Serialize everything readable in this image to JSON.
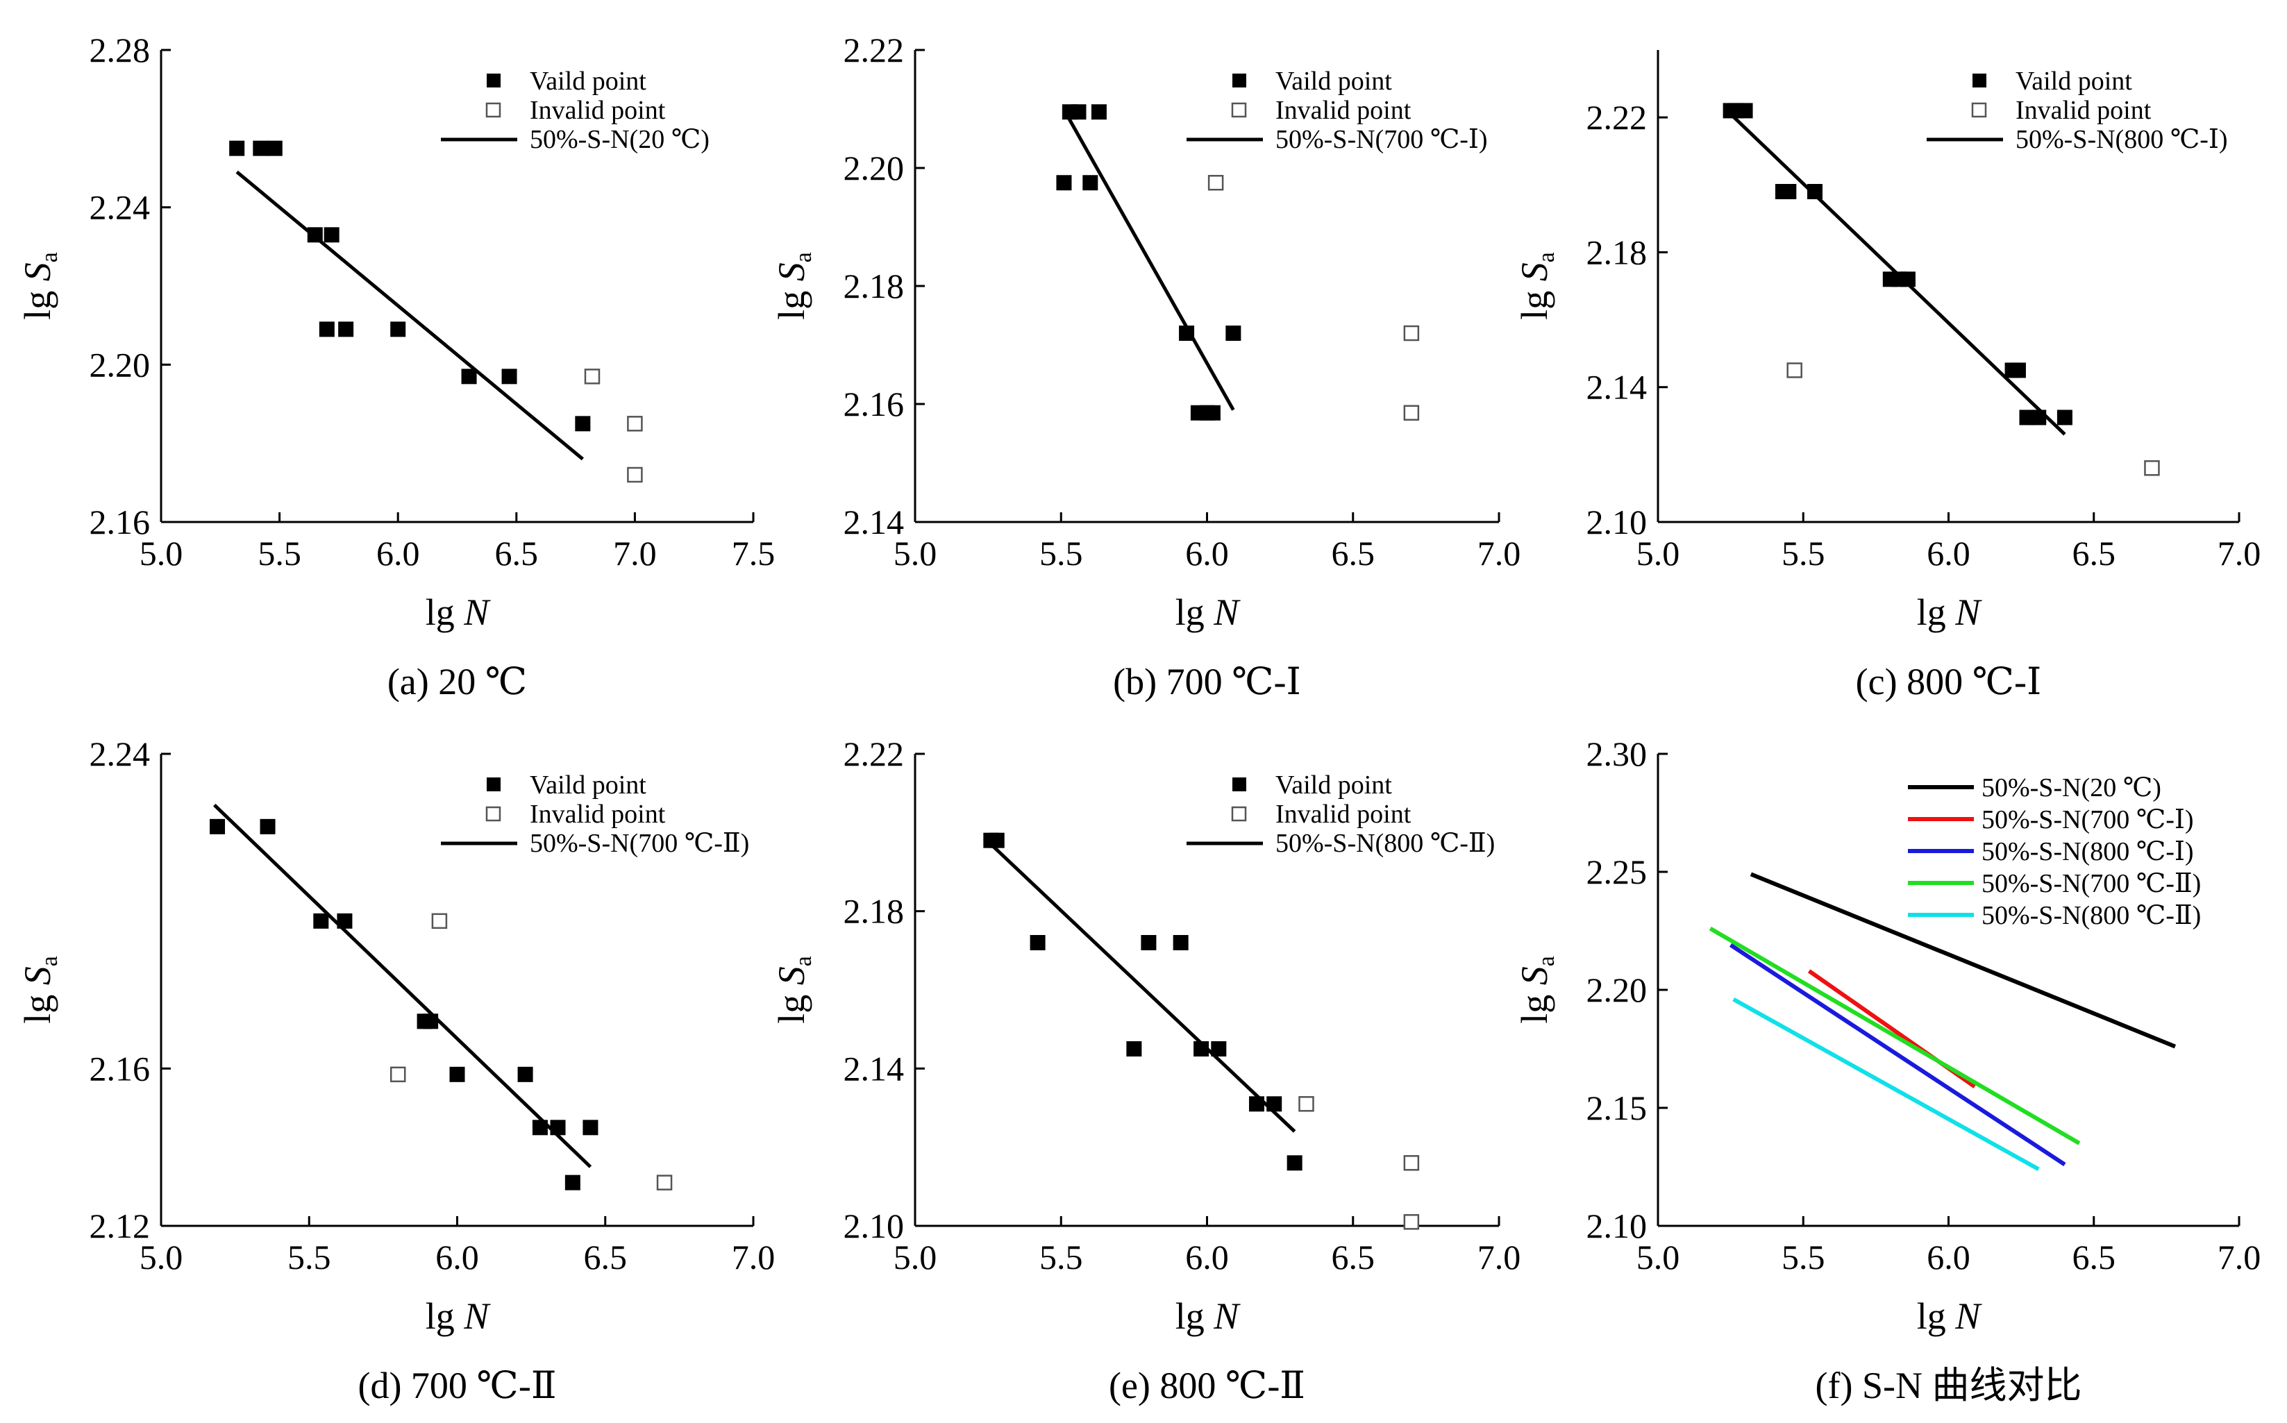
{
  "chart_data": [
    {
      "type": "scatter",
      "caption": "(a) 20 ℃",
      "xlabel": "lg N",
      "ylabel": "lg Sa",
      "xlim": [
        5.0,
        7.5
      ],
      "ylim": [
        2.16,
        2.28
      ],
      "xticks": [
        "5.0",
        "5.5",
        "6.0",
        "6.5",
        "7.0",
        "7.5"
      ],
      "yticks": [
        "2.16",
        "2.20",
        "2.24",
        "2.28"
      ],
      "legend": [
        "Vaild point",
        "Invalid point",
        "50%-S-N(20 ℃)"
      ],
      "legend_position": "top-right",
      "valid": [
        [
          5.32,
          2.255
        ],
        [
          5.42,
          2.255
        ],
        [
          5.48,
          2.255
        ],
        [
          5.65,
          2.233
        ],
        [
          5.72,
          2.233
        ],
        [
          5.7,
          2.209
        ],
        [
          5.78,
          2.209
        ],
        [
          6.0,
          2.209
        ],
        [
          6.3,
          2.197
        ],
        [
          6.47,
          2.197
        ],
        [
          6.78,
          2.185
        ]
      ],
      "invalid": [
        [
          6.82,
          2.197
        ],
        [
          7.0,
          2.185
        ],
        [
          7.0,
          2.172
        ]
      ],
      "fit_line": [
        [
          5.32,
          2.249
        ],
        [
          6.78,
          2.176
        ]
      ]
    },
    {
      "type": "scatter",
      "caption": "(b) 700 ℃-Ⅰ",
      "xlabel": "lg N",
      "ylabel": "lg Sa",
      "xlim": [
        5.0,
        7.0
      ],
      "ylim": [
        2.14,
        2.22
      ],
      "xticks": [
        "5.0",
        "5.5",
        "6.0",
        "6.5",
        "7.0"
      ],
      "yticks": [
        "2.14",
        "2.16",
        "2.18",
        "2.20",
        "2.22"
      ],
      "legend": [
        "Vaild point",
        "Invalid point",
        "50%-S-N(700 ℃-Ⅰ)"
      ],
      "legend_position": "top-right",
      "valid": [
        [
          5.53,
          2.2095
        ],
        [
          5.56,
          2.2095
        ],
        [
          5.63,
          2.2095
        ],
        [
          5.51,
          2.1975
        ],
        [
          5.6,
          2.1975
        ],
        [
          5.93,
          2.172
        ],
        [
          6.09,
          2.172
        ],
        [
          5.97,
          2.1585
        ],
        [
          6.0,
          2.1585
        ],
        [
          6.02,
          2.1585
        ]
      ],
      "invalid": [
        [
          6.03,
          2.1975
        ],
        [
          6.7,
          2.172
        ],
        [
          6.7,
          2.1585
        ]
      ],
      "fit_line": [
        [
          5.52,
          2.209
        ],
        [
          6.09,
          2.159
        ]
      ]
    },
    {
      "type": "scatter",
      "caption": "(c) 800 ℃-Ⅰ",
      "xlabel": "lg N",
      "ylabel": "lg Sa",
      "xlim": [
        5.0,
        7.0
      ],
      "ylim": [
        2.1,
        2.24
      ],
      "xticks": [
        "5.0",
        "5.5",
        "6.0",
        "6.5",
        "7.0"
      ],
      "yticks": [
        "2.10",
        "2.14",
        "2.18",
        "2.22"
      ],
      "legend": [
        "Vaild point",
        "Invalid point",
        "50%-S-N(800 ℃-Ⅰ)"
      ],
      "legend_position": "top-right",
      "valid": [
        [
          5.25,
          2.222
        ],
        [
          5.27,
          2.222
        ],
        [
          5.3,
          2.222
        ],
        [
          5.43,
          2.198
        ],
        [
          5.45,
          2.198
        ],
        [
          5.54,
          2.198
        ],
        [
          5.8,
          2.172
        ],
        [
          5.83,
          2.172
        ],
        [
          5.86,
          2.172
        ],
        [
          6.22,
          2.145
        ],
        [
          6.24,
          2.145
        ],
        [
          6.27,
          2.131
        ],
        [
          6.31,
          2.131
        ],
        [
          6.4,
          2.131
        ]
      ],
      "invalid": [
        [
          5.47,
          2.145
        ],
        [
          6.7,
          2.116
        ]
      ],
      "fit_line": [
        [
          5.25,
          2.221
        ],
        [
          6.4,
          2.126
        ]
      ]
    },
    {
      "type": "scatter",
      "caption": "(d) 700 ℃-Ⅱ",
      "xlabel": "lg N",
      "ylabel": "lg Sa",
      "xlim": [
        5.0,
        7.0
      ],
      "ylim": [
        2.12,
        2.24
      ],
      "xticks": [
        "5.0",
        "5.5",
        "6.0",
        "6.5",
        "7.0"
      ],
      "yticks": [
        "2.12",
        "2.16",
        "2.24"
      ],
      "legend": [
        "Vaild point",
        "Invalid point",
        "50%-S-N(700 ℃-Ⅱ)"
      ],
      "legend_position": "top-right",
      "valid": [
        [
          5.19,
          2.2215
        ],
        [
          5.36,
          2.2215
        ],
        [
          5.54,
          2.1975
        ],
        [
          5.62,
          2.1975
        ],
        [
          5.89,
          2.172
        ],
        [
          5.91,
          2.172
        ],
        [
          6.0,
          2.1585
        ],
        [
          6.23,
          2.1585
        ],
        [
          6.28,
          2.145
        ],
        [
          6.34,
          2.145
        ],
        [
          6.45,
          2.145
        ],
        [
          6.39,
          2.131
        ]
      ],
      "invalid": [
        [
          5.94,
          2.1975
        ],
        [
          5.8,
          2.1585
        ],
        [
          6.7,
          2.131
        ]
      ],
      "fit_line": [
        [
          5.18,
          2.227
        ],
        [
          6.45,
          2.135
        ]
      ]
    },
    {
      "type": "scatter",
      "caption": "(e) 800 ℃-Ⅱ",
      "xlabel": "lg N",
      "ylabel": "lg Sa",
      "xlim": [
        5.0,
        7.0
      ],
      "ylim": [
        2.1,
        2.22
      ],
      "xticks": [
        "5.0",
        "5.5",
        "6.0",
        "6.5",
        "7.0"
      ],
      "yticks": [
        "2.10",
        "2.14",
        "2.18",
        "2.22"
      ],
      "legend": [
        "Vaild point",
        "Invalid point",
        "50%-S-N(800 ℃-Ⅱ)"
      ],
      "legend_position": "top-right",
      "valid": [
        [
          5.26,
          2.198
        ],
        [
          5.28,
          2.198
        ],
        [
          5.42,
          2.172
        ],
        [
          5.8,
          2.172
        ],
        [
          5.91,
          2.172
        ],
        [
          5.75,
          2.145
        ],
        [
          5.98,
          2.145
        ],
        [
          6.04,
          2.145
        ],
        [
          6.17,
          2.131
        ],
        [
          6.23,
          2.131
        ],
        [
          6.3,
          2.116
        ]
      ],
      "invalid": [
        [
          6.34,
          2.131
        ],
        [
          6.7,
          2.116
        ],
        [
          6.7,
          2.101
        ]
      ],
      "fit_line": [
        [
          5.26,
          2.197
        ],
        [
          6.3,
          2.124
        ]
      ]
    },
    {
      "type": "line",
      "caption": "(f) S-N 曲线对比",
      "xlabel": "lg N",
      "ylabel": "lg Sa",
      "xlim": [
        5.0,
        7.0
      ],
      "ylim": [
        2.1,
        2.3
      ],
      "xticks": [
        "5.0",
        "5.5",
        "6.0",
        "6.5",
        "7.0"
      ],
      "yticks": [
        "2.10",
        "2.15",
        "2.20",
        "2.25",
        "2.30"
      ],
      "legend_position": "top-right",
      "series": [
        {
          "name": "50%-S-N(20 ℃)",
          "color": "#000000",
          "points": [
            [
              5.32,
              2.249
            ],
            [
              6.78,
              2.176
            ]
          ]
        },
        {
          "name": "50%-S-N(700 ℃-Ⅰ)",
          "color": "#ee1111",
          "points": [
            [
              5.52,
              2.208
            ],
            [
              6.09,
              2.159
            ]
          ]
        },
        {
          "name": "50%-S-N(800 ℃-Ⅰ)",
          "color": "#1a1adc",
          "points": [
            [
              5.25,
              2.219
            ],
            [
              6.4,
              2.126
            ]
          ]
        },
        {
          "name": "50%-S-N(700 ℃-Ⅱ)",
          "color": "#22dd22",
          "points": [
            [
              5.18,
              2.226
            ],
            [
              6.45,
              2.135
            ]
          ]
        },
        {
          "name": "50%-S-N(800 ℃-Ⅱ)",
          "color": "#11e0e8",
          "points": [
            [
              5.26,
              2.196
            ],
            [
              6.31,
              2.124
            ]
          ]
        }
      ]
    }
  ]
}
